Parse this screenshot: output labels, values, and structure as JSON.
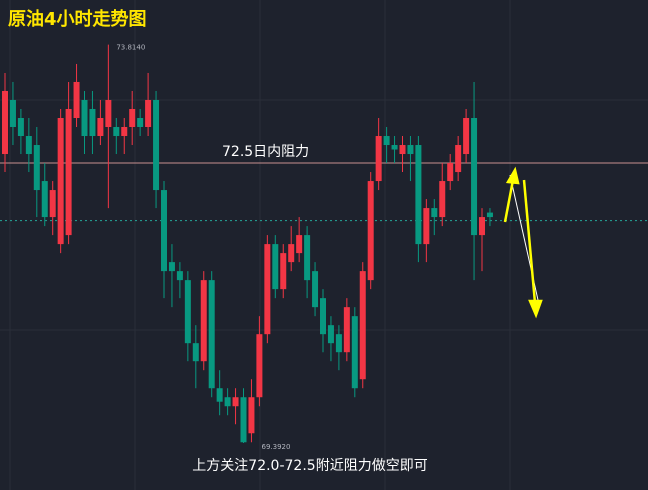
{
  "chart_data": {
    "type": "candlestick",
    "title": "原油4小时走势图",
    "note": "上方关注72.0-72.5附近阻力做空即可",
    "open": [
      72.6,
      73.2,
      73.0,
      72.8,
      72.7,
      72.3,
      71.9,
      71.6,
      71.7,
      73.0,
      73.2,
      73.1,
      72.8,
      72.9,
      72.9,
      72.8,
      72.9,
      73.0,
      72.9,
      73.2,
      72.2,
      71.4,
      71.3,
      71.2,
      70.5,
      70.3,
      71.2,
      70.0,
      69.9,
      69.8,
      69.9,
      69.5,
      69.9,
      70.6,
      71.6,
      71.1,
      71.4,
      71.5,
      71.7,
      71.3,
      71.0,
      70.7,
      70.6,
      70.4,
      70.8,
      70.1,
      71.2,
      72.3,
      72.8,
      72.7,
      72.6,
      72.7,
      72.7,
      71.6,
      72.0,
      71.9,
      72.3,
      72.4,
      72.6,
      73.0,
      71.7,
      71.95
    ],
    "high": [
      73.5,
      73.4,
      73.1,
      73.0,
      72.9,
      72.5,
      72.3,
      73.1,
      73.4,
      73.6,
      73.3,
      73.3,
      73.2,
      73.814,
      73.0,
      73.0,
      73.3,
      73.1,
      73.5,
      73.3,
      72.3,
      71.6,
      71.4,
      71.3,
      70.7,
      71.3,
      71.3,
      70.2,
      70.0,
      70.0,
      70.0,
      70.1,
      70.8,
      71.7,
      71.7,
      71.6,
      71.8,
      71.9,
      71.8,
      71.4,
      71.1,
      70.8,
      70.7,
      71.0,
      70.9,
      71.4,
      72.4,
      73.0,
      72.9,
      72.8,
      72.8,
      72.8,
      72.8,
      72.1,
      72.1,
      72.5,
      72.6,
      72.8,
      73.1,
      73.4,
      72.0,
      72.0
    ],
    "low": [
      72.4,
      72.7,
      72.6,
      72.4,
      71.9,
      71.8,
      71.7,
      71.5,
      71.6,
      72.9,
      72.6,
      72.6,
      72.7,
      72.0,
      72.6,
      72.6,
      72.7,
      72.8,
      72.8,
      72.0,
      71.0,
      70.9,
      71.0,
      70.3,
      70.0,
      70.2,
      69.9,
      69.7,
      69.7,
      69.6,
      69.392,
      69.4,
      69.8,
      70.5,
      71.0,
      71.0,
      71.3,
      71.4,
      71.0,
      70.8,
      70.4,
      70.3,
      70.2,
      70.3,
      69.9,
      70.0,
      71.1,
      72.2,
      72.5,
      72.5,
      72.4,
      72.3,
      71.4,
      71.4,
      71.7,
      71.8,
      72.2,
      72.3,
      72.5,
      71.2,
      71.3,
      71.8
    ],
    "close": [
      73.3,
      72.9,
      72.8,
      72.6,
      72.2,
      71.9,
      72.2,
      73.0,
      73.1,
      73.4,
      72.8,
      72.8,
      73.0,
      73.2,
      72.8,
      72.9,
      73.1,
      72.9,
      73.2,
      72.2,
      71.3,
      71.3,
      71.2,
      70.5,
      70.3,
      71.2,
      70.0,
      69.85,
      69.8,
      69.9,
      69.4,
      69.9,
      70.6,
      71.6,
      71.1,
      71.5,
      71.6,
      71.7,
      71.2,
      70.9,
      70.6,
      70.5,
      70.4,
      70.9,
      70.0,
      71.3,
      72.3,
      72.8,
      72.7,
      72.65,
      72.7,
      72.6,
      71.6,
      72.0,
      71.9,
      72.3,
      72.5,
      72.7,
      73.0,
      71.7,
      71.9,
      71.9
    ],
    "up_color": "#f23645",
    "down_color": "#089981",
    "ylim": [
      68.87,
      74.31
    ],
    "max_label": {
      "value": 73.814,
      "label": "73.8140"
    },
    "min_label": {
      "value": 69.392,
      "label": "69.3920"
    },
    "resistance": {
      "value": 72.5,
      "label": "72.5日内阻力"
    },
    "price_line": 71.86
  }
}
